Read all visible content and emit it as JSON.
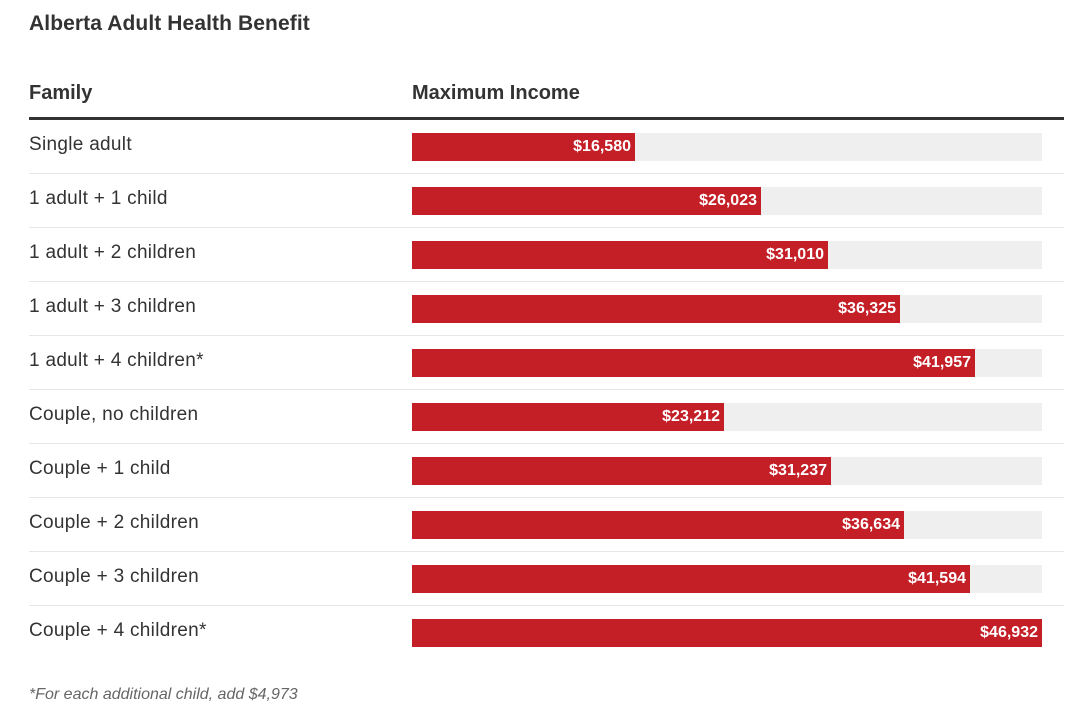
{
  "chart_data": {
    "type": "bar",
    "orientation": "horizontal",
    "title": "Alberta Adult Health Benefit",
    "category_header": "Family",
    "value_header": "Maximum Income",
    "categories": [
      "Single adult",
      "1 adult + 1 child",
      "1 adult + 2 children",
      "1 adult + 3 children",
      "1 adult + 4 children*",
      "Couple, no children",
      "Couple + 1 child",
      "Couple + 2 children",
      "Couple + 3 children",
      "Couple + 4 children*"
    ],
    "values": [
      16580,
      26023,
      31010,
      36325,
      41957,
      23212,
      31237,
      36634,
      41594,
      46932
    ],
    "value_labels": [
      "$16,580",
      "$26,023",
      "$31,010",
      "$36,325",
      "$41,957",
      "$23,212",
      "$31,237",
      "$36,634",
      "$41,594",
      "$46,932"
    ],
    "xlim": [
      0,
      46932
    ],
    "bar_color": "#c41f27",
    "track_color": "#efefef",
    "footnote": "*For each additional child, add $4,973"
  }
}
